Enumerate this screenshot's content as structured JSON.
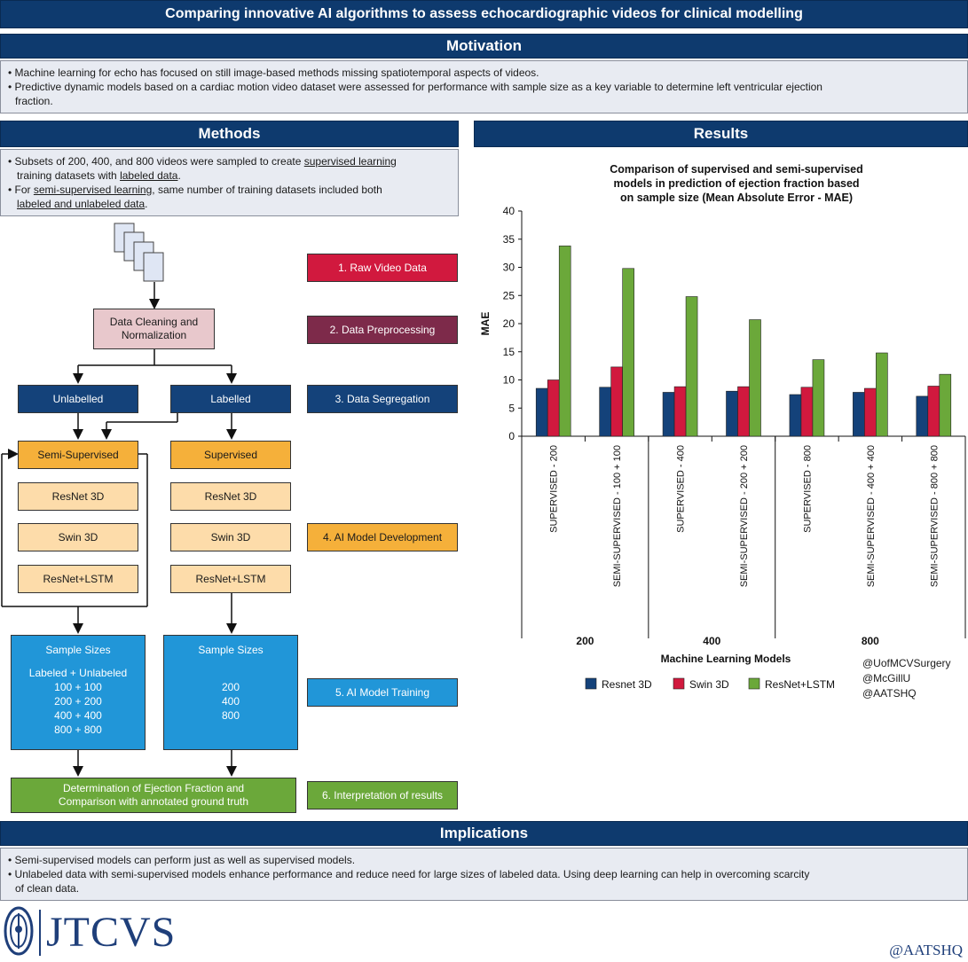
{
  "title": "Comparing innovative AI algorithms to assess echocardiographic videos for clinical modelling",
  "motivation": {
    "heading": "Motivation",
    "bullets": [
      "• Machine learning for echo has focused on still image-based methods missing spatiotemporal aspects of videos.",
      "• Predictive dynamic models based on a cardiac motion video dataset were assessed for performance with sample size as a key variable to determine left ventricular ejection",
      "fraction."
    ]
  },
  "methods": {
    "heading": "Methods",
    "b1_pre": "• Subsets of 200, 400, and 800 videos were sampled to create ",
    "b1_u1": "supervised learning",
    "b1_mid": "training datasets with ",
    "b1_u2": "labeled data",
    "b1_end": ".",
    "b2_pre": "• For ",
    "b2_u1": "semi-supervised learning",
    "b2_mid": ", same number of training datasets included both",
    "b2_u2": "labeled and unlabeled data",
    "b2_end": "."
  },
  "flow": {
    "cleaning": "Data Cleaning and Normalization",
    "unlabelled": "Unlabelled",
    "labelled": "Labelled",
    "semi": "Semi-Supervised",
    "supervised": "Supervised",
    "resnet3d": "ResNet 3D",
    "swin3d": "Swin 3D",
    "resnetlstm": "ResNet+LSTM",
    "sample_title": "Sample Sizes",
    "semi_sizes_header": "Labeled + Unlabeled",
    "semi_sizes": [
      "100 + 100",
      "200 + 200",
      "400 + 400",
      "800 + 800"
    ],
    "sup_sizes": [
      "200",
      "400",
      "800"
    ],
    "determination": "Determination of Ejection Fraction and Comparison with annotated ground truth"
  },
  "steps": [
    {
      "label": "1. Raw Video Data",
      "color": "#d1193e"
    },
    {
      "label": "2. Data Preprocessing",
      "color": "#7d2a4a"
    },
    {
      "label": "3. Data Segregation",
      "color": "#14427a"
    },
    {
      "label": "4. AI Model Development",
      "color": "#f5b03a"
    },
    {
      "label": "5. AI Model Training",
      "color": "#2196d8"
    },
    {
      "label": "6. Interpretation of results",
      "color": "#6ba83a"
    }
  ],
  "results": {
    "heading": "Results",
    "handles": [
      "@UofMCVSurgery",
      "@McGillU",
      "@AATSHQ"
    ]
  },
  "chart_data": {
    "type": "bar",
    "title": "Comparison of supervised and semi-supervised models in prediction of ejection fraction based on sample size (Mean Absolute Error - MAE)",
    "xlabel": "Machine Learning Models",
    "ylabel": "MAE",
    "ylim": [
      0,
      40
    ],
    "yticks": [
      0,
      5,
      10,
      15,
      20,
      25,
      30,
      35,
      40
    ],
    "categories": [
      "SUPERVISED - 200",
      "SEMI-SUPERVISED - 100 + 100",
      "SUPERVISED - 400",
      "SEMI-SUPERVISED - 200 + 200",
      "SUPERVISED - 800",
      "SEMI-SUPERVISED - 400 + 400",
      "SEMI-SUPERVISED - 800 + 800"
    ],
    "groups": [
      {
        "label": "200",
        "span": [
          0,
          1
        ]
      },
      {
        "label": "400",
        "span": [
          2,
          3
        ]
      },
      {
        "label": "800",
        "span": [
          4,
          6
        ]
      }
    ],
    "series": [
      {
        "name": "Resnet 3D",
        "color": "#14427a",
        "values": [
          8.5,
          8.7,
          7.8,
          8.0,
          7.4,
          7.8,
          7.1
        ]
      },
      {
        "name": "Swin 3D",
        "color": "#d1193e",
        "values": [
          10.0,
          12.3,
          8.8,
          8.8,
          8.7,
          8.5,
          8.9
        ]
      },
      {
        "name": "ResNet+LSTM",
        "color": "#6ba83a",
        "values": [
          33.8,
          29.8,
          24.8,
          20.7,
          13.6,
          14.8,
          11.0
        ]
      }
    ],
    "legend": "bottom",
    "grid": false
  },
  "implications": {
    "heading": "Implications",
    "bullets": [
      "• Semi-supervised models can perform just as well as supervised models.",
      "• Unlabeled data with semi-supervised models enhance performance and reduce need for large sizes of labeled data. Using deep learning can help in overcoming scarcity",
      "of clean data."
    ]
  },
  "footer": {
    "journal": "JTCVS",
    "handle": "@AATSHQ"
  }
}
